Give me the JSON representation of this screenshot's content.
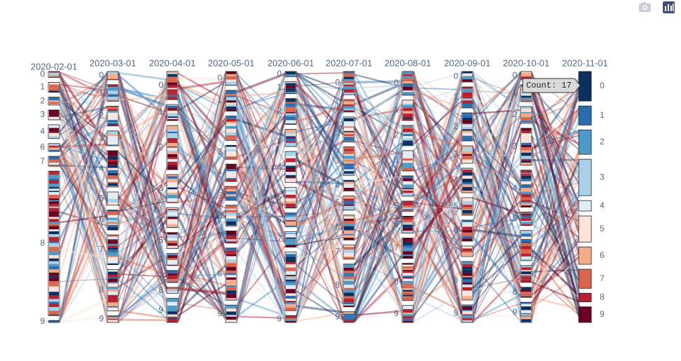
{
  "chart_data": {
    "type": "parcats",
    "colors": [
      "#0b2f60",
      "#2a6db1",
      "#4d9ac8",
      "#a9d0e6",
      "#e1ecf5",
      "#fce4d8",
      "#f5aa88",
      "#d9654f",
      "#b7202e",
      "#6a0021"
    ],
    "tooltip": "Count: 17",
    "dimensions": [
      {
        "label": "2020-02-01",
        "categories": [
          "0",
          "1",
          "2",
          "3",
          "4",
          "6",
          "7",
          "8",
          "9"
        ],
        "values": [
          3,
          5,
          4,
          5,
          7,
          4,
          5,
          73,
          1
        ]
      },
      {
        "label": "2020-03-01",
        "categories": [
          "0",
          "1",
          "2",
          "3",
          "4",
          "5",
          "6",
          "7",
          "8",
          "9"
        ],
        "values": [
          5,
          10,
          12,
          9,
          22,
          8,
          12,
          18,
          25,
          4
        ]
      },
      {
        "label": "2020-04-01",
        "categories": [
          "0",
          "1",
          "2",
          "3",
          "4",
          "5",
          "6",
          "7",
          "8",
          "9"
        ],
        "values": [
          14,
          8,
          22,
          14,
          10,
          8,
          6,
          6,
          3,
          12
        ]
      },
      {
        "label": "2020-05-01",
        "categories": [
          "0",
          "1",
          "2",
          "3",
          "4",
          "5",
          "6",
          "7",
          "8",
          "9"
        ],
        "values": [
          8,
          12,
          14,
          8,
          10,
          8,
          12,
          7,
          30,
          10
        ]
      },
      {
        "label": "2020-06-01",
        "categories": [
          "0",
          "1",
          "2",
          "3",
          "4",
          "5",
          "6",
          "7",
          "8",
          "9"
        ],
        "values": [
          3,
          7,
          15,
          10,
          18,
          12,
          8,
          9,
          34,
          4
        ]
      },
      {
        "label": "2020-07-01",
        "categories": [
          "0",
          "1",
          "2",
          "3",
          "4",
          "5",
          "6",
          "7",
          "8",
          "9"
        ],
        "values": [
          13,
          7,
          14,
          16,
          6,
          8,
          14,
          8,
          24,
          6
        ]
      },
      {
        "label": "2020-08-01",
        "categories": [
          "0",
          "1",
          "2",
          "3",
          "4",
          "5",
          "6",
          "7",
          "8",
          "9"
        ],
        "values": [
          14,
          12,
          12,
          12,
          12,
          6,
          10,
          12,
          22,
          10
        ]
      },
      {
        "label": "2020-09-01",
        "categories": [
          "0",
          "1",
          "2",
          "3",
          "4",
          "5",
          "6",
          "7",
          "8",
          "9"
        ],
        "values": [
          6,
          12,
          16,
          10,
          14,
          10,
          12,
          6,
          22,
          10
        ]
      },
      {
        "label": "2020-10-01",
        "categories": [
          "0",
          "1",
          "2",
          "3",
          "4",
          "5",
          "6",
          "7",
          "8",
          "9"
        ],
        "values": [
          5,
          10,
          10,
          22,
          22,
          8,
          18,
          10,
          6,
          12
        ]
      },
      {
        "label": "2020-11-01",
        "categories": [
          "0",
          "1",
          "2",
          "3",
          "4",
          "5",
          "6",
          "7",
          "8",
          "9"
        ],
        "values": [
          17,
          11,
          14,
          21,
          6,
          15,
          10,
          11,
          5,
          9
        ]
      }
    ]
  }
}
